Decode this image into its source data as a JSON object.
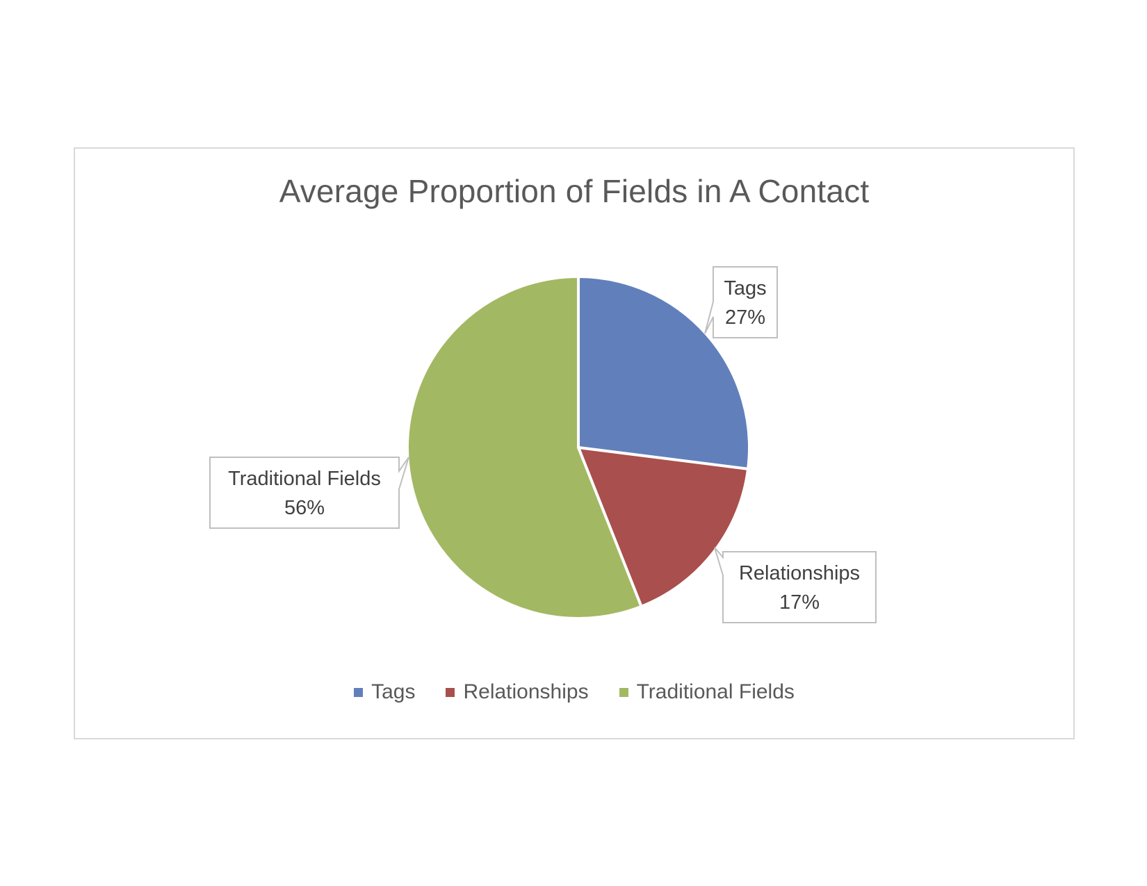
{
  "chart_data": {
    "type": "pie",
    "title": "Average Proportion of Fields in A Contact",
    "legend_position": "bottom",
    "slices": [
      {
        "label": "Tags",
        "value": 27,
        "display": "27%",
        "color": "#6180BB"
      },
      {
        "label": "Relationships",
        "value": 17,
        "display": "17%",
        "color": "#A94F4D"
      },
      {
        "label": "Traditional Fields",
        "value": 56,
        "display": "56%",
        "color": "#A3B862"
      }
    ]
  }
}
